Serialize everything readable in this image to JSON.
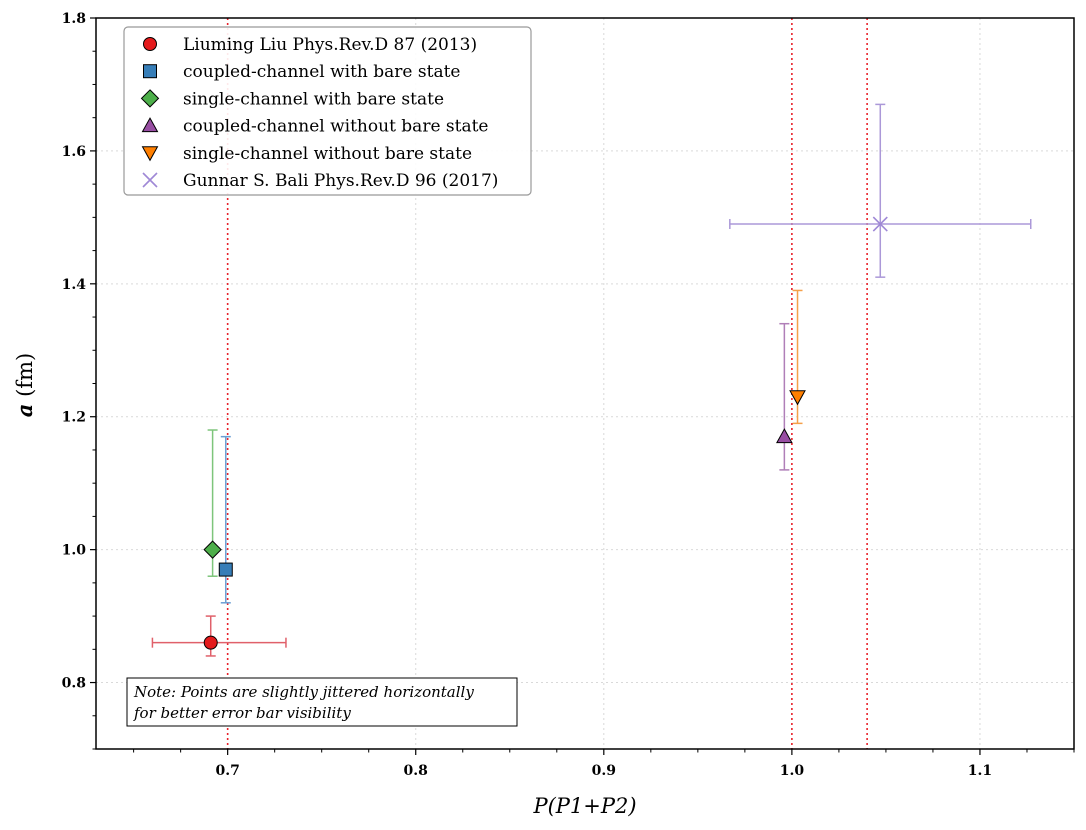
{
  "chart_data": {
    "type": "scatter",
    "title": "",
    "xlabel": "P(P1+P2)",
    "ylabel_symbol": "a",
    "ylabel_unit": "(fm)",
    "xlim": [
      0.63,
      1.15
    ],
    "ylim": [
      0.7,
      1.8
    ],
    "xticks": [
      0.7,
      0.8,
      0.9,
      1.0,
      1.1
    ],
    "xtick_labels": [
      "0.7",
      "0.8",
      "0.9",
      "1.0",
      "1.1"
    ],
    "yticks": [
      0.8,
      1.0,
      1.2,
      1.4,
      1.6,
      1.8
    ],
    "ytick_labels": [
      "0.8",
      "1.0",
      "1.2",
      "1.4",
      "1.6",
      "1.8"
    ],
    "grid": true,
    "vlines": [
      0.7,
      1.0,
      1.04
    ],
    "vline_color": "#e8232b",
    "legend_position": "top-left",
    "series": [
      {
        "name": "Liuming Liu Phys.Rev.D 87 (2013)",
        "marker": "circle",
        "color": "#e41a1c",
        "errcolor": "#e0606a",
        "x": 0.691,
        "y": 0.86,
        "xerr": [
          0.031,
          0.04
        ],
        "yerr": [
          0.02,
          0.04
        ]
      },
      {
        "name": "coupled-channel with bare state",
        "marker": "square",
        "color": "#377eb8",
        "errcolor": "#6a9ed3",
        "x": 0.699,
        "y": 0.97,
        "xerr": null,
        "yerr": [
          0.05,
          0.2
        ]
      },
      {
        "name": "single-channel with bare state",
        "marker": "diamond",
        "color": "#4daf4a",
        "errcolor": "#7ec57b",
        "x": 0.692,
        "y": 1.0,
        "xerr": null,
        "yerr": [
          0.04,
          0.18
        ]
      },
      {
        "name": "coupled-channel without bare state",
        "marker": "triangle-up",
        "color": "#984ea3",
        "errcolor": "#b07fb8",
        "x": 0.996,
        "y": 1.17,
        "xerr": null,
        "yerr": [
          0.05,
          0.17
        ]
      },
      {
        "name": "single-channel without bare state",
        "marker": "triangle-down",
        "color": "#ff7f00",
        "errcolor": "#f5a04a",
        "x": 1.003,
        "y": 1.23,
        "xerr": null,
        "yerr": [
          0.04,
          0.16
        ]
      },
      {
        "name": "Gunnar S. Bali Phys.Rev.D 96 (2017)",
        "marker": "x",
        "color": "#9f88d6",
        "errcolor": "#ab98d8",
        "x": 1.047,
        "y": 1.49,
        "xerr": [
          0.08,
          0.08
        ],
        "yerr": [
          0.08,
          0.18
        ]
      }
    ]
  },
  "note": {
    "line1": "Note: Points are slightly jittered horizontally",
    "line2": "for better error bar visibility"
  }
}
